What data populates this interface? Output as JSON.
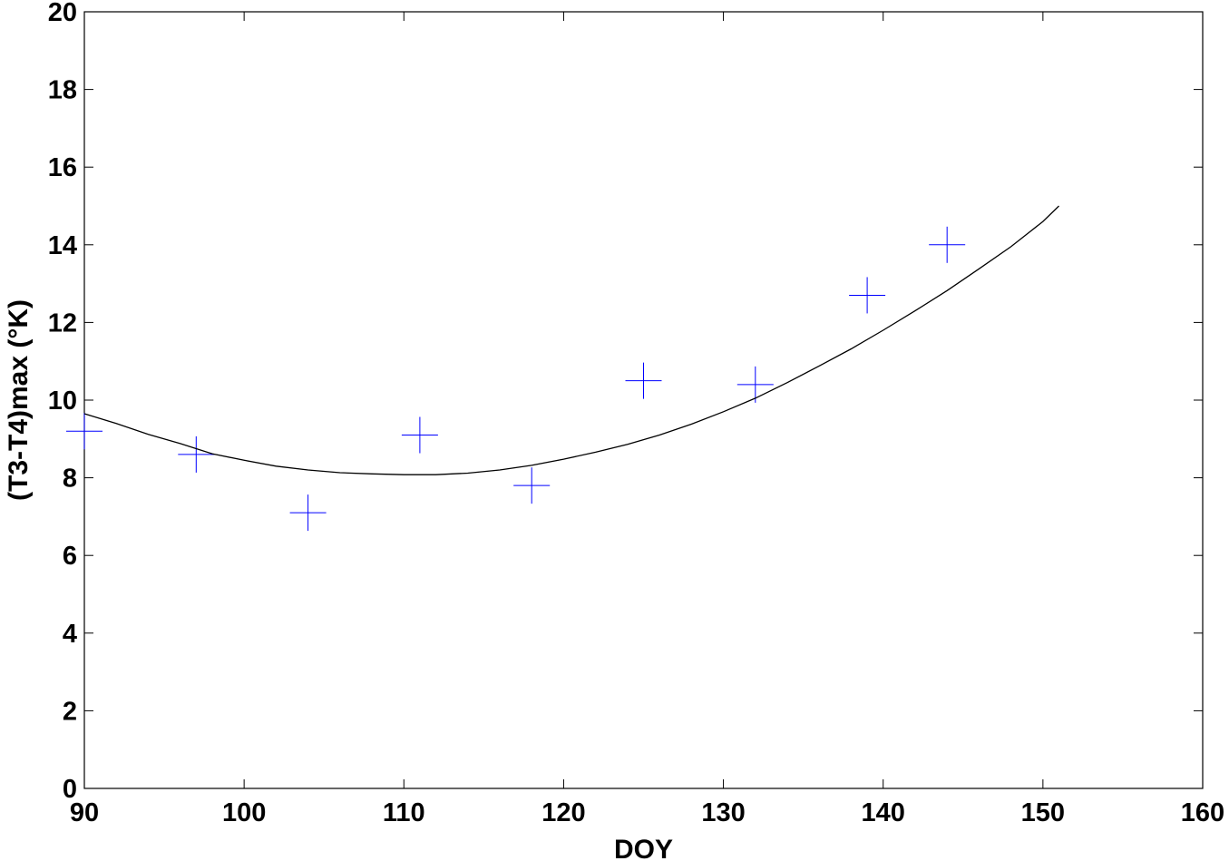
{
  "chart_data": {
    "type": "scatter",
    "xlabel": "DOY",
    "ylabel": "(T3-T4)max (°K)",
    "xlim": [
      90,
      160
    ],
    "ylim": [
      0,
      20
    ],
    "xticks": [
      90,
      100,
      110,
      120,
      130,
      140,
      150,
      160
    ],
    "yticks": [
      0,
      2,
      4,
      6,
      8,
      10,
      12,
      14,
      16,
      18,
      20
    ],
    "grid": false,
    "legend": "none",
    "series": [
      {
        "kind": "points",
        "marker": "plus",
        "color": "#0000ff",
        "x": [
          90,
          97,
          104,
          111,
          118,
          125,
          132,
          139,
          144
        ],
        "y": [
          9.2,
          8.6,
          7.1,
          9.1,
          7.8,
          10.5,
          10.4,
          12.7,
          14.0
        ]
      },
      {
        "kind": "line",
        "color": "#000000",
        "x": [
          90,
          92,
          94,
          96,
          98,
          100,
          102,
          104,
          106,
          108,
          110,
          112,
          114,
          116,
          118,
          120,
          122,
          124,
          126,
          128,
          130,
          132,
          134,
          136,
          138,
          140,
          142,
          144,
          146,
          148,
          150,
          151
        ],
        "y": [
          9.65,
          9.4,
          9.12,
          8.88,
          8.62,
          8.45,
          8.3,
          8.2,
          8.13,
          8.1,
          8.08,
          8.08,
          8.12,
          8.2,
          8.32,
          8.48,
          8.66,
          8.86,
          9.1,
          9.38,
          9.7,
          10.05,
          10.45,
          10.88,
          11.32,
          11.8,
          12.3,
          12.82,
          13.38,
          13.95,
          14.6,
          15.0
        ]
      }
    ]
  }
}
